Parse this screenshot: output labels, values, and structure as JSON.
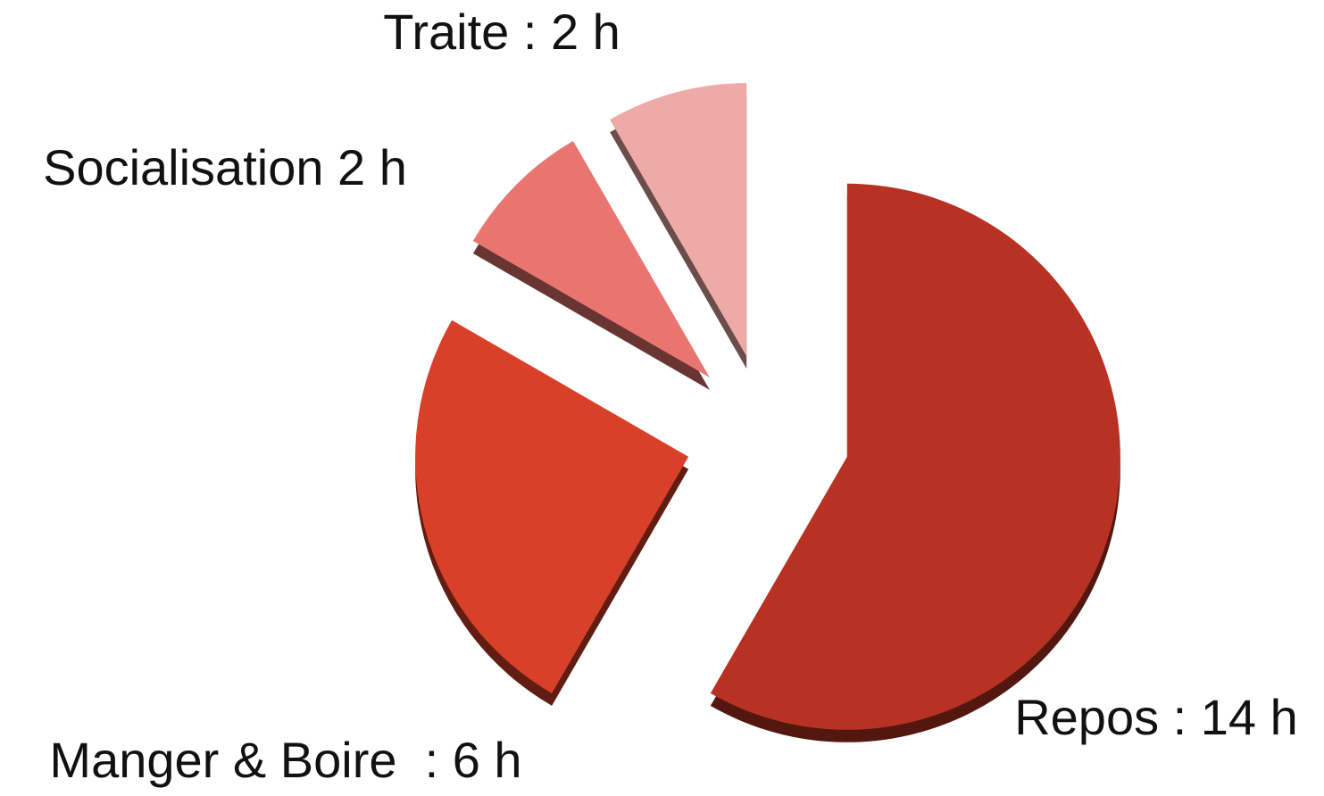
{
  "chart_data": {
    "type": "pie",
    "categories": [
      "Repos : 14 h",
      "Manger & Boire  : 6 h",
      "Socialisation 2 h",
      "Traite : 2 h"
    ],
    "values": [
      14,
      6,
      2,
      2
    ],
    "colors": [
      "#b83224",
      "#d94029",
      "#e87570",
      "#eeaaa7"
    ],
    "start_angle": 0,
    "direction": "clockwise",
    "exploded": true
  }
}
